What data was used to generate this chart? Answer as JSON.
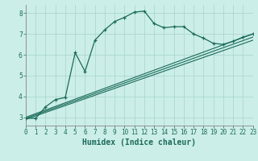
{
  "xlabel": "Humidex (Indice chaleur)",
  "bg_color": "#cceee8",
  "grid_color": "#aad8d0",
  "line_color": "#1a6b5a",
  "x_main": [
    0,
    1,
    2,
    3,
    4,
    5,
    6,
    7,
    8,
    9,
    10,
    11,
    12,
    13,
    14,
    15,
    16,
    17,
    18,
    19,
    20,
    21,
    22,
    23
  ],
  "y_main": [
    2.95,
    2.95,
    3.5,
    3.85,
    3.95,
    6.1,
    5.2,
    6.7,
    7.2,
    7.6,
    7.8,
    8.05,
    8.1,
    7.5,
    7.3,
    7.35,
    7.35,
    7.0,
    6.8,
    6.55,
    6.5,
    6.65,
    6.85,
    7.0
  ],
  "ref_lines": [
    {
      "x0": 0,
      "y0": 3.0,
      "x1": 23,
      "y1": 7.0
    },
    {
      "x0": 0,
      "y0": 2.95,
      "x1": 23,
      "y1": 6.85
    },
    {
      "x0": 0,
      "y0": 2.9,
      "x1": 23,
      "y1": 6.7
    }
  ],
  "xlim": [
    0,
    23
  ],
  "ylim": [
    2.6,
    8.4
  ],
  "xticks": [
    0,
    1,
    2,
    3,
    4,
    5,
    6,
    7,
    8,
    9,
    10,
    11,
    12,
    13,
    14,
    15,
    16,
    17,
    18,
    19,
    20,
    21,
    22,
    23
  ],
  "yticks": [
    3,
    4,
    5,
    6,
    7,
    8
  ],
  "tick_fontsize": 5.5,
  "xlabel_fontsize": 7.0
}
